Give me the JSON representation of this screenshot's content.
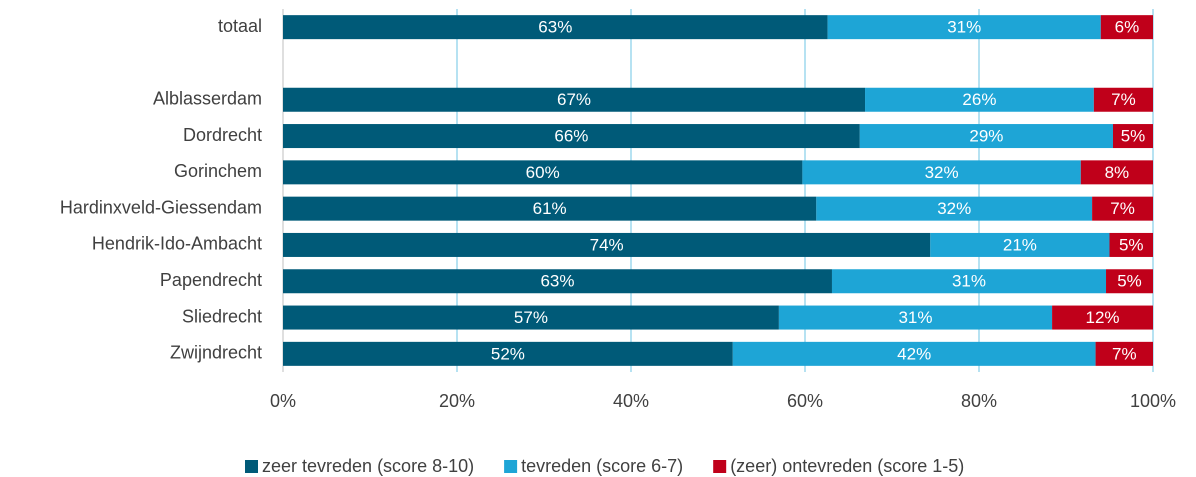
{
  "chart_data": {
    "type": "stacked_bar",
    "orientation": "horizontal",
    "categories": [
      "totaal",
      null,
      "Alblasserdam",
      "Dordrecht",
      "Gorinchem",
      "Hardinxveld-Giessendam",
      "Hendrik-Ido-Ambacht",
      "Papendrecht",
      "Sliedrecht",
      "Zwijndrecht"
    ],
    "series": [
      {
        "name": "zeer tevreden (score 8-10)",
        "color": "#005a78",
        "values": [
          62.6,
          null,
          66.9,
          66.3,
          59.7,
          61.3,
          74.4,
          63.1,
          57.0,
          51.7
        ],
        "value_labels": [
          "63%",
          null,
          "67%",
          "66%",
          "60%",
          "61%",
          "74%",
          "63%",
          "57%",
          "52%"
        ]
      },
      {
        "name": "tevreden (score 6-7)",
        "color": "#1ea5d6",
        "values": [
          31.4,
          null,
          26.3,
          29.1,
          32.0,
          31.7,
          20.6,
          31.5,
          31.4,
          41.7
        ],
        "value_labels": [
          "31%",
          null,
          "26%",
          "29%",
          "32%",
          "32%",
          "21%",
          "31%",
          "31%",
          "42%"
        ]
      },
      {
        "name": "(zeer) ontevreden (score 1-5)",
        "color": "#c0001a",
        "values": [
          6.0,
          null,
          6.8,
          4.6,
          8.3,
          7.0,
          5.0,
          5.4,
          11.6,
          6.6
        ],
        "value_labels": [
          "6%",
          null,
          "7%",
          "5%",
          "8%",
          "7%",
          "5%",
          "5%",
          "12%",
          "7%"
        ]
      }
    ],
    "xlim": [
      0,
      100
    ],
    "xticks": [
      {
        "value": 0,
        "label": "0%"
      },
      {
        "value": 20,
        "label": "20%"
      },
      {
        "value": 40,
        "label": "40%"
      },
      {
        "value": 60,
        "label": "60%"
      },
      {
        "value": 80,
        "label": "80%"
      },
      {
        "value": 100,
        "label": "100%"
      }
    ],
    "grid": true,
    "legend": "bottom"
  }
}
